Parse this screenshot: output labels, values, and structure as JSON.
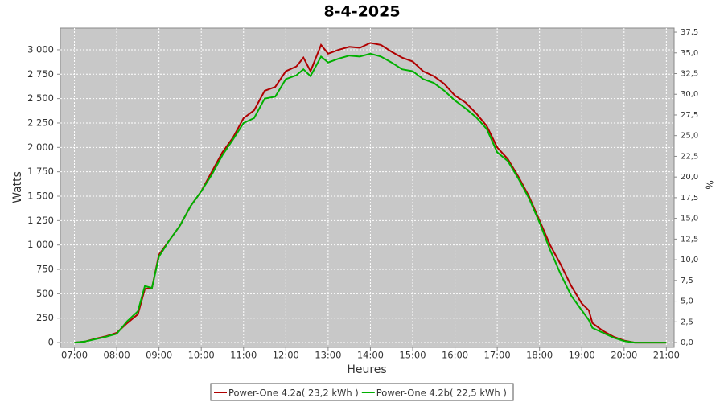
{
  "chart_data": {
    "type": "line",
    "title": "8-4-2025",
    "x_label": "Heures",
    "y_label": "Watts",
    "y2_label": "%",
    "x": [
      "07:00",
      "07:15",
      "07:30",
      "07:45",
      "08:00",
      "08:15",
      "08:30",
      "08:40",
      "08:50",
      "09:00",
      "09:15",
      "09:30",
      "09:45",
      "10:00",
      "10:15",
      "10:30",
      "10:45",
      "11:00",
      "11:15",
      "11:30",
      "11:45",
      "12:00",
      "12:15",
      "12:25",
      "12:35",
      "12:50",
      "13:00",
      "13:15",
      "13:30",
      "13:45",
      "14:00",
      "14:15",
      "14:30",
      "14:45",
      "15:00",
      "15:15",
      "15:30",
      "15:45",
      "16:00",
      "16:15",
      "16:30",
      "16:45",
      "17:00",
      "17:15",
      "17:30",
      "17:45",
      "18:00",
      "18:15",
      "18:30",
      "18:45",
      "19:00",
      "19:10",
      "19:15",
      "19:30",
      "19:45",
      "20:00",
      "20:15",
      "21:00"
    ],
    "series": [
      {
        "name": "Power-One 4.2a( 23,2 kWh )",
        "color": "#b00000",
        "values": [
          0,
          10,
          40,
          65,
          100,
          200,
          290,
          550,
          560,
          900,
          1050,
          1200,
          1400,
          1550,
          1750,
          1950,
          2100,
          2300,
          2380,
          2580,
          2620,
          2780,
          2830,
          2920,
          2780,
          3050,
          2960,
          3000,
          3030,
          3020,
          3070,
          3050,
          2980,
          2920,
          2880,
          2780,
          2730,
          2650,
          2530,
          2460,
          2350,
          2220,
          2000,
          1880,
          1700,
          1500,
          1250,
          1000,
          800,
          580,
          400,
          330,
          200,
          120,
          60,
          20,
          0,
          0
        ]
      },
      {
        "name": "Power-One 4.2b( 22,5 kWh )",
        "color": "#00b000",
        "values": [
          0,
          10,
          35,
          60,
          90,
          220,
          320,
          580,
          560,
          880,
          1050,
          1200,
          1400,
          1550,
          1720,
          1920,
          2080,
          2250,
          2300,
          2500,
          2520,
          2700,
          2740,
          2800,
          2730,
          2930,
          2870,
          2910,
          2940,
          2930,
          2960,
          2930,
          2870,
          2800,
          2780,
          2700,
          2660,
          2580,
          2480,
          2400,
          2310,
          2190,
          1950,
          1860,
          1680,
          1480,
          1230,
          950,
          700,
          480,
          330,
          230,
          150,
          100,
          50,
          15,
          0,
          0
        ]
      }
    ],
    "xlim": [
      "06:40",
      "21:11"
    ],
    "xticks": [
      "07:00",
      "08:00",
      "09:00",
      "10:00",
      "11:00",
      "12:00",
      "13:00",
      "14:00",
      "15:00",
      "16:00",
      "17:00",
      "18:00",
      "19:00",
      "20:00",
      "21:00"
    ],
    "ylim": [
      -49,
      3222
    ],
    "yticks": [
      0,
      250,
      500,
      750,
      {
        "value": 1000,
        "label": "1 000"
      },
      {
        "value": 1250,
        "label": "1 250"
      },
      {
        "value": 1500,
        "label": "1 500"
      },
      {
        "value": 1750,
        "label": "1 750"
      },
      {
        "value": 2000,
        "label": "2 000"
      },
      {
        "value": 2250,
        "label": "2 250"
      },
      {
        "value": 2500,
        "label": "2 500"
      },
      {
        "value": 2750,
        "label": "2 750"
      },
      {
        "value": 3000,
        "label": "3 000"
      }
    ],
    "y2lim": [
      -0.58,
      37.99
    ],
    "y2ticks": [
      {
        "value": 0,
        "label": "0,0"
      },
      {
        "value": 2.5,
        "label": "2,5"
      },
      {
        "value": 5,
        "label": "5,0"
      },
      {
        "value": 7.5,
        "label": "7,5"
      },
      {
        "value": 10,
        "label": "10,0"
      },
      {
        "value": 12.5,
        "label": "12,5"
      },
      {
        "value": 15,
        "label": "15,0"
      },
      {
        "value": 17.5,
        "label": "17,5"
      },
      {
        "value": 20,
        "label": "20,0"
      },
      {
        "value": 22.5,
        "label": "22,5"
      },
      {
        "value": 25,
        "label": "25,0"
      },
      {
        "value": 27.5,
        "label": "27,5"
      },
      {
        "value": 30,
        "label": "30,0"
      },
      {
        "value": 32.5,
        "label": "32,5"
      },
      {
        "value": 35,
        "label": "35,0"
      },
      {
        "value": 37.5,
        "label": "37,5"
      }
    ],
    "grid": true,
    "legend": "bottom"
  }
}
